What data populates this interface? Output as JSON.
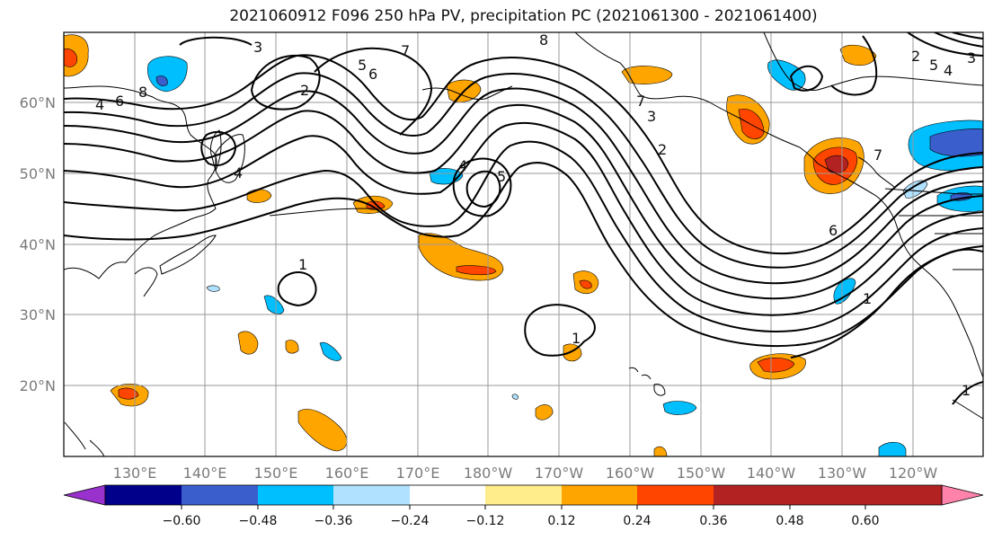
{
  "title": "2021060912 F096 250 hPa PV, precipitation PC (2021061300 - 2021061400)",
  "map": {
    "lat_labels": [
      "60°N",
      "50°N",
      "40°N",
      "30°N",
      "20°N"
    ],
    "lon_labels": [
      "130°E",
      "140°E",
      "150°E",
      "160°E",
      "170°E",
      "180°W",
      "170°W",
      "160°W",
      "150°W",
      "140°W",
      "130°W",
      "120°W"
    ],
    "contour_labels": [
      "3",
      "8",
      "7",
      "6",
      "5",
      "2",
      "4",
      "6",
      "8",
      "4",
      "5",
      "1",
      "1",
      "7",
      "3",
      "2",
      "4",
      "6",
      "7",
      "1",
      "5",
      "4",
      "3",
      "2",
      "1"
    ]
  },
  "colorbar": {
    "colors": [
      "#9932cc",
      "#00008b",
      "#3a5fcd",
      "#00bfff",
      "#b0e2ff",
      "#ffffff",
      "#ffec8b",
      "#ffa500",
      "#ff4500",
      "#b22222",
      "#ff82ab"
    ],
    "tick_labels": [
      "−0.60",
      "−0.48",
      "−0.36",
      "−0.24",
      "−0.12",
      "0.12",
      "0.24",
      "0.36",
      "0.48",
      "0.60"
    ]
  },
  "fill_colors": {
    "pos1": "#ffec8b",
    "pos2": "#ffa500",
    "pos3": "#ff4500",
    "pos4": "#b22222",
    "neg1": "#b0e2ff",
    "neg2": "#00bfff",
    "neg3": "#3a5fcd"
  }
}
